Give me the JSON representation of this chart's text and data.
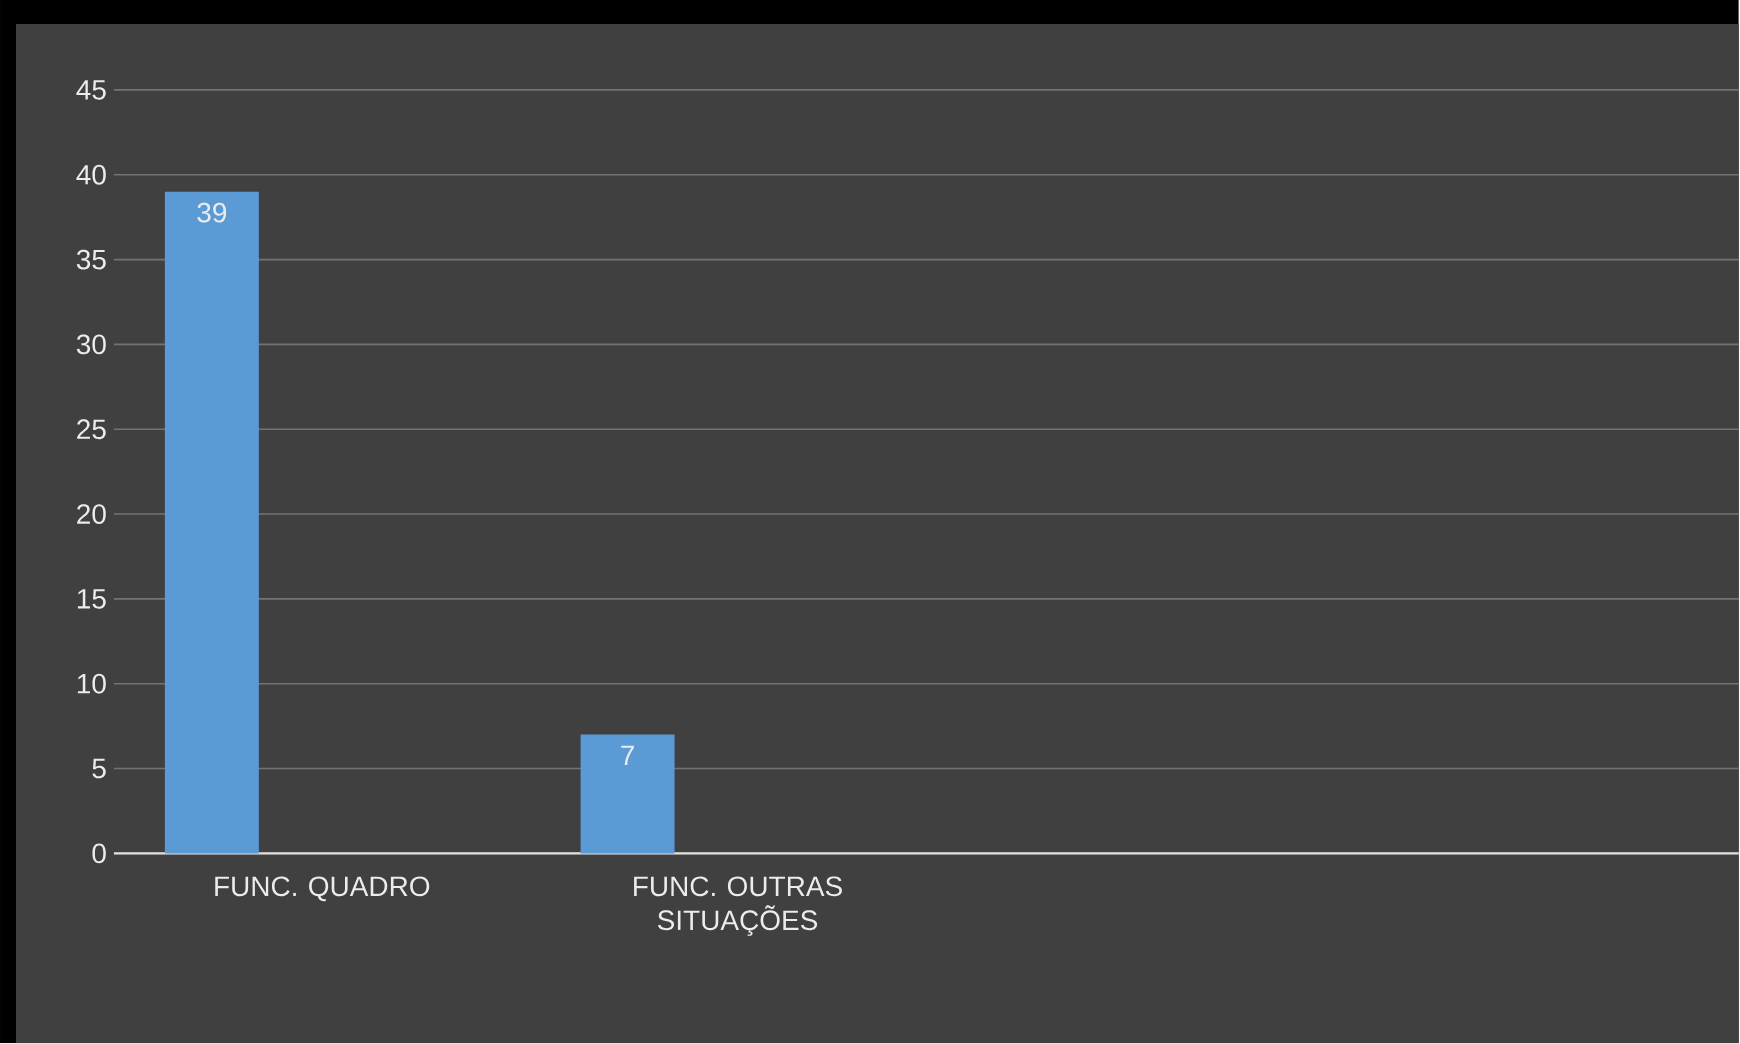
{
  "chart_data": {
    "type": "bar",
    "categories": [
      "FUNC. QUADRO",
      "FUNC. OUTRAS SITUAÇÕES",
      null,
      null
    ],
    "series": [
      {
        "color": "#5b9bd5",
        "values": [
          39,
          7,
          null,
          null
        ]
      }
    ],
    "ylim": [
      0,
      45
    ],
    "yticks": [
      0,
      5,
      10,
      15,
      20,
      25,
      30,
      35,
      40,
      45
    ],
    "grid": "y",
    "data_labels": true
  }
}
